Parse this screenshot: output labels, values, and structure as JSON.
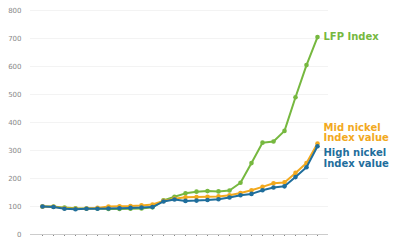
{
  "chart_data": {
    "type": "line",
    "categories": [
      null,
      null,
      null,
      null,
      null,
      null,
      null,
      null,
      null,
      null,
      null,
      null,
      null,
      null,
      null,
      null,
      null,
      null,
      null,
      null,
      null,
      null,
      null,
      null,
      null,
      null
    ],
    "series": [
      {
        "name": "LFP Index",
        "color": "#76b83f",
        "values": [
          100,
          100,
          96,
          94,
          93,
          93,
          91,
          91,
          92,
          93,
          97,
          122,
          135,
          147,
          153,
          155,
          154,
          157,
          185,
          255,
          328,
          332,
          370,
          490,
          605,
          705
        ]
      },
      {
        "name": "Mid nickel\nIndex value",
        "color": "#f2a91e",
        "values": [
          100,
          99,
          94,
          92,
          93,
          95,
          100,
          101,
          102,
          104,
          107,
          120,
          128,
          133,
          134,
          135,
          136,
          140,
          148,
          158,
          170,
          183,
          186,
          220,
          255,
          325
        ]
      },
      {
        "name": "High nickel\nIndex value",
        "color": "#1f6e9c",
        "values": [
          100,
          98,
          92,
          90,
          92,
          92,
          93,
          94,
          95,
          96,
          98,
          118,
          125,
          120,
          121,
          123,
          126,
          132,
          140,
          145,
          158,
          168,
          172,
          205,
          240,
          315
        ]
      }
    ],
    "ylim": [
      0,
      800
    ],
    "yticks": [
      0,
      100,
      200,
      300,
      400,
      500,
      600,
      700,
      800
    ],
    "grid": true,
    "marker": "circle"
  }
}
